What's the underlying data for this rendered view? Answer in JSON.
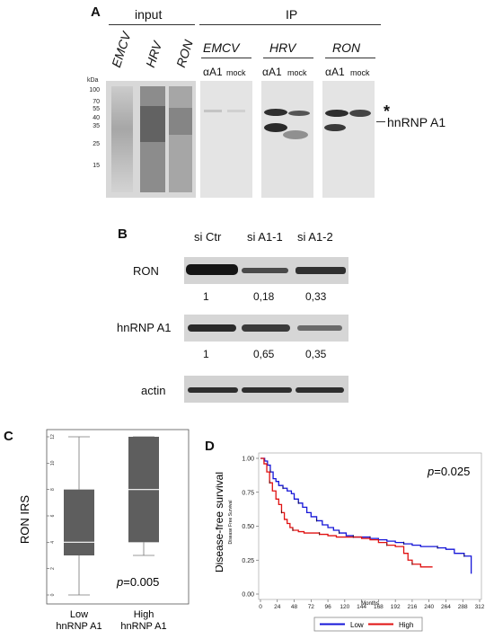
{
  "panel_a": {
    "label": "A",
    "input_header": "input",
    "ip_header": "IP",
    "input_lanes": [
      "EMCV",
      "HRV",
      "RON"
    ],
    "ip_groups": [
      "EMCV",
      "HRV",
      "RON"
    ],
    "lane_ab": "αA1",
    "lane_mock": "mock",
    "kda_label": "kDa",
    "markers": [
      "100",
      "70",
      "55",
      "40",
      "35",
      "25",
      "15"
    ],
    "star_label": "*",
    "band_label": "hnRNP A1"
  },
  "panel_b": {
    "label": "B",
    "columns": [
      "si Ctr",
      "si A1-1",
      "si A1-2"
    ],
    "rows": [
      {
        "name": "RON",
        "values": [
          "1",
          "0,18",
          "0,33"
        ]
      },
      {
        "name": "hnRNP A1",
        "values": [
          "1",
          "0,65",
          "0,35"
        ]
      },
      {
        "name": "actin",
        "values": []
      }
    ]
  },
  "panel_c": {
    "label": "C",
    "ylabel": "RON IRS",
    "pvalue_prefix": "p",
    "pvalue_rest": "=0.005",
    "groups": [
      {
        "line1": "Low",
        "line2": "hnRNP A1"
      },
      {
        "line1": "High",
        "line2": "hnRNP A1"
      }
    ],
    "yticks": [
      "0",
      "2",
      "4",
      "6",
      "8",
      "10",
      "12"
    ]
  },
  "panel_d": {
    "label": "D",
    "ylabel": "Disease-free survival",
    "ylabel_small": "Disease Free Survival",
    "xlabel": "Months",
    "pvalue_prefix": "p",
    "pvalue_rest": "=0.025",
    "legend": [
      "Low",
      "High"
    ]
  },
  "chart_data": [
    {
      "type": "box",
      "ylabel": "RON IRS",
      "ylim": [
        0,
        12
      ],
      "categories": [
        "Low hnRNP A1",
        "High hnRNP A1"
      ],
      "boxes": [
        {
          "min": 0,
          "q1": 3,
          "median": 4,
          "q3": 8,
          "max": 12
        },
        {
          "min": 3,
          "q1": 4,
          "median": 8,
          "q3": 12,
          "max": 12
        }
      ],
      "annotation": "p=0.005"
    },
    {
      "type": "line",
      "subtype": "kaplan-meier",
      "ylabel": "Disease-free survival",
      "xlabel": "Months",
      "xlim": [
        0,
        312
      ],
      "ylim": [
        0,
        1
      ],
      "xticks": [
        0,
        24,
        48,
        72,
        96,
        120,
        144,
        168,
        192,
        216,
        240,
        264,
        288,
        312
      ],
      "yticks": [
        0.0,
        0.25,
        0.5,
        0.75,
        1.0
      ],
      "annotation": "p=0.025",
      "legend_position": "bottom",
      "series": [
        {
          "name": "Low",
          "color": "#1515d8",
          "points": [
            [
              0,
              1.0
            ],
            [
              6,
              0.98
            ],
            [
              10,
              0.95
            ],
            [
              14,
              0.9
            ],
            [
              18,
              0.85
            ],
            [
              22,
              0.83
            ],
            [
              26,
              0.8
            ],
            [
              32,
              0.78
            ],
            [
              38,
              0.76
            ],
            [
              44,
              0.74
            ],
            [
              48,
              0.7
            ],
            [
              54,
              0.67
            ],
            [
              60,
              0.64
            ],
            [
              66,
              0.6
            ],
            [
              72,
              0.57
            ],
            [
              80,
              0.54
            ],
            [
              88,
              0.51
            ],
            [
              96,
              0.49
            ],
            [
              104,
              0.47
            ],
            [
              112,
              0.45
            ],
            [
              122,
              0.43
            ],
            [
              132,
              0.42
            ],
            [
              144,
              0.42
            ],
            [
              156,
              0.41
            ],
            [
              168,
              0.4
            ],
            [
              180,
              0.39
            ],
            [
              192,
              0.38
            ],
            [
              204,
              0.37
            ],
            [
              216,
              0.36
            ],
            [
              228,
              0.35
            ],
            [
              240,
              0.35
            ],
            [
              252,
              0.34
            ],
            [
              264,
              0.33
            ],
            [
              276,
              0.3
            ],
            [
              284,
              0.3
            ],
            [
              290,
              0.28
            ],
            [
              296,
              0.28
            ],
            [
              300,
              0.15
            ]
          ]
        },
        {
          "name": "High",
          "color": "#e01010",
          "points": [
            [
              0,
              1.0
            ],
            [
              5,
              0.96
            ],
            [
              9,
              0.9
            ],
            [
              13,
              0.82
            ],
            [
              17,
              0.76
            ],
            [
              22,
              0.7
            ],
            [
              26,
              0.66
            ],
            [
              30,
              0.6
            ],
            [
              34,
              0.55
            ],
            [
              38,
              0.52
            ],
            [
              42,
              0.49
            ],
            [
              46,
              0.47
            ],
            [
              54,
              0.46
            ],
            [
              62,
              0.45
            ],
            [
              72,
              0.45
            ],
            [
              84,
              0.44
            ],
            [
              96,
              0.43
            ],
            [
              108,
              0.42
            ],
            [
              120,
              0.42
            ],
            [
              132,
              0.42
            ],
            [
              144,
              0.41
            ],
            [
              156,
              0.4
            ],
            [
              168,
              0.38
            ],
            [
              180,
              0.36
            ],
            [
              192,
              0.35
            ],
            [
              204,
              0.3
            ],
            [
              210,
              0.25
            ],
            [
              216,
              0.22
            ],
            [
              228,
              0.2
            ],
            [
              240,
              0.2
            ],
            [
              245,
              0.2
            ]
          ]
        }
      ]
    }
  ]
}
